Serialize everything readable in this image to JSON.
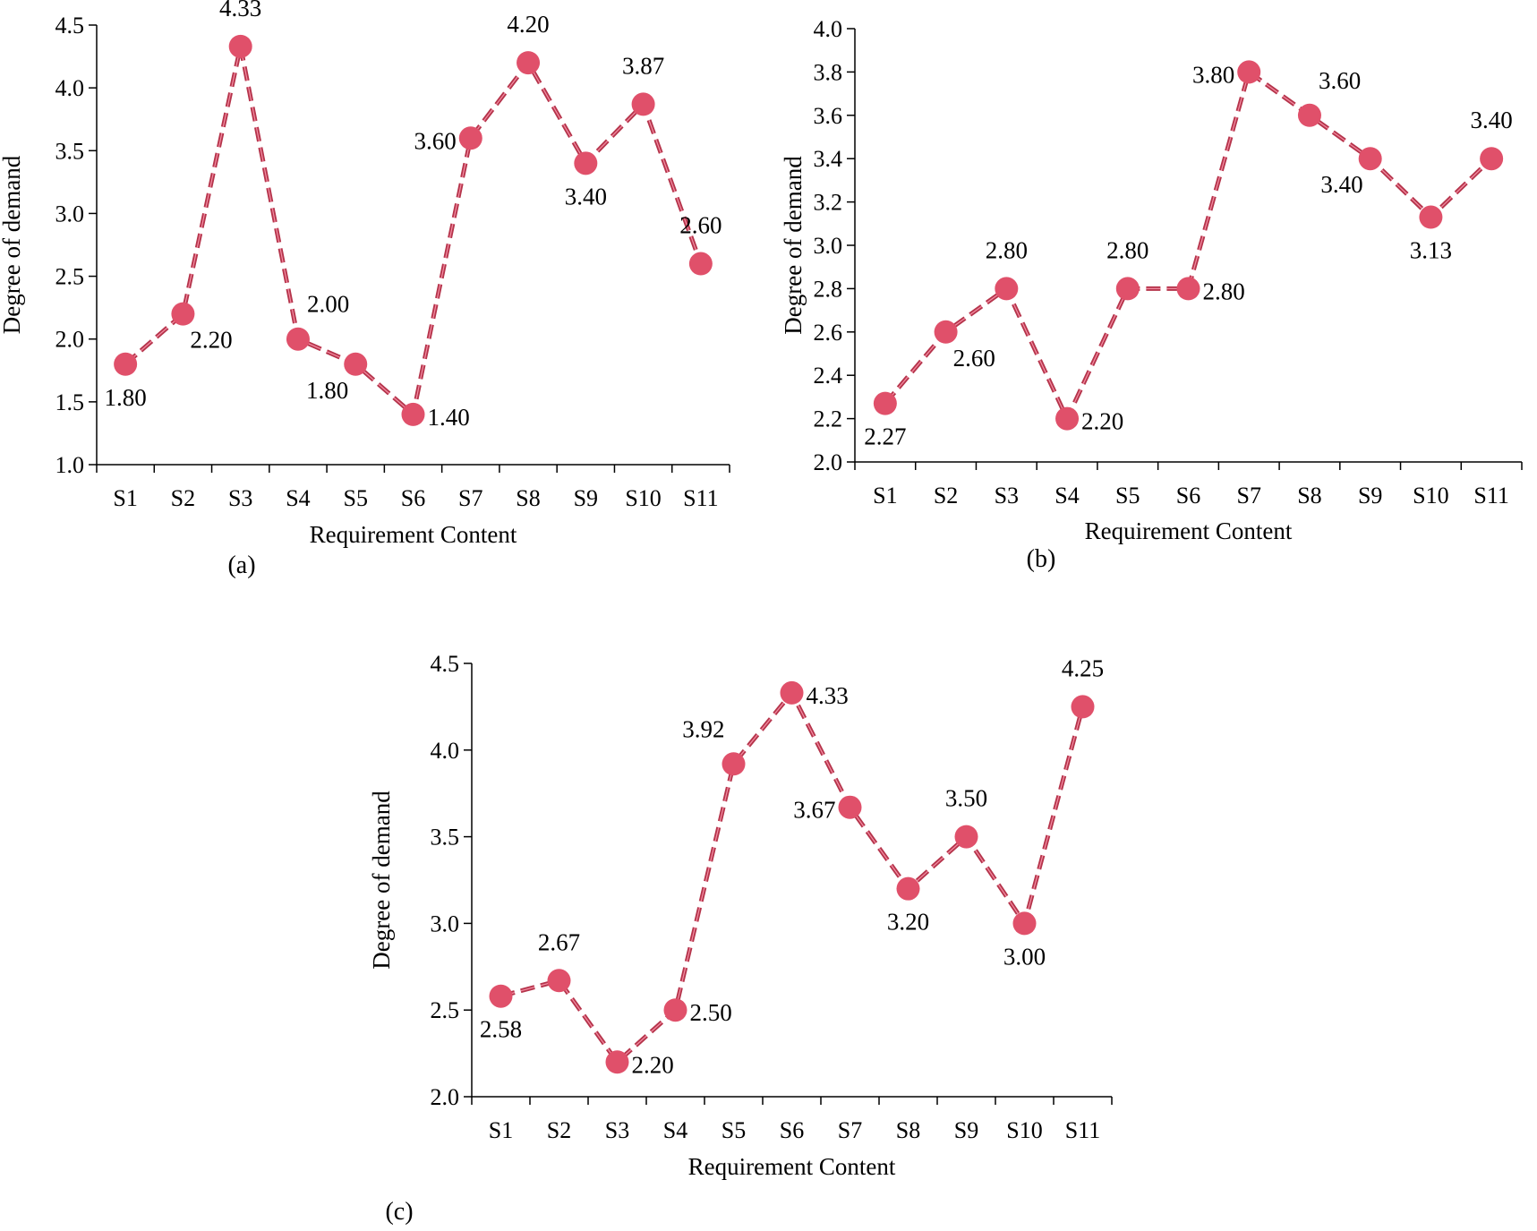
{
  "colors": {
    "line": "#b5344b",
    "line_highlight": "#f28aa0",
    "marker": "#e0506a",
    "axis": "#000000"
  },
  "chart_data": [
    {
      "type": "line",
      "panel_label": "(a)",
      "xlabel": "Requirement Content",
      "ylabel": "Degree of demand",
      "categories": [
        "S1",
        "S2",
        "S3",
        "S4",
        "S5",
        "S6",
        "S7",
        "S8",
        "S9",
        "S10",
        "S11"
      ],
      "values": [
        1.8,
        2.2,
        4.33,
        2.0,
        1.8,
        1.4,
        3.6,
        4.2,
        3.4,
        3.87,
        2.6
      ],
      "value_labels": [
        "1.80",
        "2.20",
        "4.33",
        "2.00",
        "1.80",
        "1.40",
        "3.60",
        "4.20",
        "3.40",
        "3.87",
        "2.60"
      ],
      "label_positions": [
        "below",
        "below-right",
        "above",
        "above-right",
        "below-left",
        "right",
        "left",
        "above",
        "below",
        "above",
        "above"
      ],
      "ylim": [
        1.0,
        4.5
      ],
      "yticks": [
        "1.0",
        "1.5",
        "2.0",
        "2.5",
        "3.0",
        "3.5",
        "4.0",
        "4.5"
      ],
      "line_style": "dashed"
    },
    {
      "type": "line",
      "panel_label": "(b)",
      "xlabel": "Requirement Content",
      "ylabel": "Degree of demand",
      "categories": [
        "S1",
        "S2",
        "S3",
        "S4",
        "S5",
        "S6",
        "S7",
        "S8",
        "S9",
        "S10",
        "S11"
      ],
      "values": [
        2.27,
        2.6,
        2.8,
        2.2,
        2.8,
        2.8,
        3.8,
        3.6,
        3.4,
        3.13,
        3.4
      ],
      "value_labels": [
        "2.27",
        "2.60",
        "2.80",
        "2.20",
        "2.80",
        "2.80",
        "3.80",
        "3.60",
        "3.40",
        "3.13",
        "3.40"
      ],
      "label_positions": [
        "below",
        "below-right",
        "above",
        "right",
        "above",
        "right",
        "left",
        "above-right",
        "below-left",
        "below",
        "above"
      ],
      "ylim": [
        2.0,
        4.0
      ],
      "yticks": [
        "2.0",
        "2.2",
        "2.4",
        "2.6",
        "2.8",
        "3.0",
        "3.2",
        "3.4",
        "3.6",
        "3.8",
        "4.0"
      ],
      "line_style": "dashed"
    },
    {
      "type": "line",
      "panel_label": "(c)",
      "xlabel": "Requirement Content",
      "ylabel": "Degree of demand",
      "categories": [
        "S1",
        "S2",
        "S3",
        "S4",
        "S5",
        "S6",
        "S7",
        "S8",
        "S9",
        "S10",
        "S11"
      ],
      "values": [
        2.58,
        2.67,
        2.2,
        2.5,
        3.92,
        4.33,
        3.67,
        3.2,
        3.5,
        3.0,
        4.25
      ],
      "value_labels": [
        "2.58",
        "2.67",
        "2.20",
        "2.50",
        "3.92",
        "4.33",
        "3.67",
        "3.20",
        "3.50",
        "3.00",
        "4.25"
      ],
      "label_positions": [
        "below",
        "above",
        "right",
        "right",
        "above-left",
        "right",
        "left",
        "below",
        "above",
        "below",
        "above"
      ],
      "ylim": [
        2.0,
        4.5
      ],
      "yticks": [
        "2.0",
        "2.5",
        "3.0",
        "3.5",
        "4.0",
        "4.5"
      ],
      "line_style": "dashed"
    }
  ]
}
